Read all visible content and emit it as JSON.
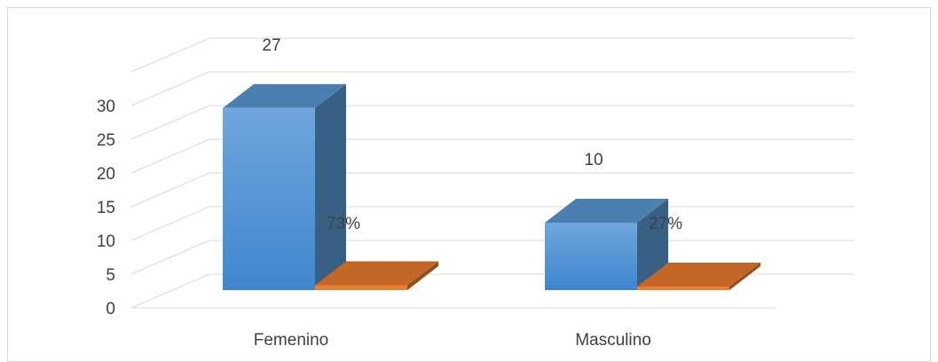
{
  "chart_data": {
    "type": "bar",
    "style": "3d-column",
    "categories": [
      "Femenino",
      "Masculino"
    ],
    "series": [
      {
        "values": [
          27,
          10
        ],
        "data_labels": [
          "27",
          "10"
        ],
        "color": "#5b9bd5"
      },
      {
        "values": [
          0.73,
          0.27
        ],
        "data_labels": [
          "73%",
          "27%"
        ],
        "color": "#ed7d31"
      }
    ],
    "yticks": [
      "0",
      "5",
      "10",
      "15",
      "20",
      "25",
      "30"
    ],
    "ylim": [
      0,
      35
    ],
    "grid": true,
    "legend": "none"
  }
}
